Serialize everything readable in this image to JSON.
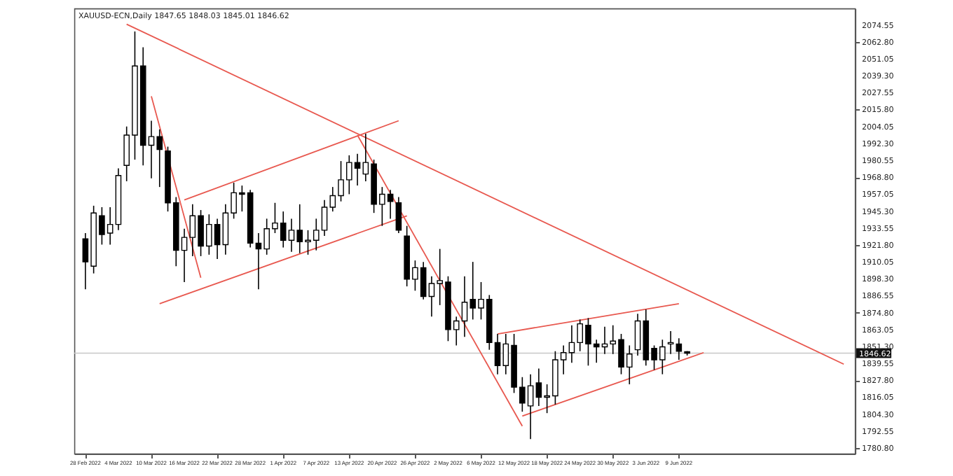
{
  "chart_data": {
    "type": "candlestick",
    "title": "XAUUSD-ECN,Daily  1847.65 1848.03 1845.01 1846.62",
    "categories": [
      "28 Feb 2022",
      null,
      null,
      null,
      "4 Mar 2022",
      null,
      null,
      null,
      "10 Mar 2022",
      null,
      null,
      null,
      "16 Mar 2022",
      null,
      null,
      null,
      "22 Mar 2022",
      null,
      null,
      null,
      "28 Mar 2022",
      null,
      null,
      null,
      "1 Apr 2022",
      null,
      null,
      null,
      "7 Apr 2022",
      null,
      null,
      null,
      "13 Apr 2022",
      null,
      null,
      null,
      "20 Apr 2022",
      null,
      null,
      null,
      "26 Apr 2022",
      null,
      null,
      null,
      "2 May 2022",
      null,
      null,
      null,
      "6 May 2022",
      null,
      null,
      null,
      "12 May 2022",
      null,
      null,
      null,
      "18 May 2022",
      null,
      null,
      null,
      "24 May 2022",
      null,
      null,
      null,
      "30 May 2022",
      null,
      null,
      null,
      "3 Jun 2022",
      null,
      null,
      null,
      "9 Jun 2022",
      null,
      null,
      null,
      null,
      null,
      null,
      null,
      null,
      null,
      null,
      null,
      null,
      null,
      null,
      null,
      null,
      null,
      null,
      null,
      null
    ],
    "ohlc": [
      [
        1926,
        1930,
        1891,
        1910
      ],
      [
        1907,
        1949,
        1902,
        1944
      ],
      [
        1942,
        1948,
        1922,
        1929
      ],
      [
        1930,
        1948,
        1922,
        1936
      ],
      [
        1936,
        1975,
        1932,
        1970
      ],
      [
        1977,
        2004,
        1966,
        1998
      ],
      [
        1998,
        2070,
        1981,
        2046
      ],
      [
        2046,
        2059,
        1977,
        1991
      ],
      [
        1991,
        2008,
        1968,
        1997
      ],
      [
        1997,
        2002,
        1962,
        1988
      ],
      [
        1987,
        1990,
        1945,
        1951
      ],
      [
        1951,
        1955,
        1907,
        1918
      ],
      [
        1918,
        1933,
        1896,
        1927
      ],
      [
        1927,
        1950,
        1914,
        1942
      ],
      [
        1942,
        1946,
        1914,
        1921
      ],
      [
        1921,
        1943,
        1915,
        1936
      ],
      [
        1936,
        1940,
        1912,
        1922
      ],
      [
        1922,
        1950,
        1915,
        1944
      ],
      [
        1944,
        1965,
        1940,
        1958
      ],
      [
        1958,
        1963,
        1945,
        1957
      ],
      [
        1958,
        1960,
        1920,
        1923
      ],
      [
        1923,
        1930,
        1891,
        1919
      ],
      [
        1919,
        1940,
        1915,
        1933
      ],
      [
        1933,
        1951,
        1930,
        1937
      ],
      [
        1937,
        1945,
        1920,
        1925
      ],
      [
        1925,
        1940,
        1917,
        1932
      ],
      [
        1932,
        1950,
        1916,
        1924
      ],
      [
        1924,
        1932,
        1915,
        1925
      ],
      [
        1925,
        1940,
        1918,
        1932
      ],
      [
        1932,
        1953,
        1928,
        1948
      ],
      [
        1948,
        1962,
        1945,
        1956
      ],
      [
        1956,
        1980,
        1952,
        1967
      ],
      [
        1967,
        1984,
        1957,
        1979
      ],
      [
        1979,
        1985,
        1963,
        1975
      ],
      [
        1971,
        1999,
        1966,
        1979
      ],
      [
        1978,
        1981,
        1944,
        1950
      ],
      [
        1950,
        1962,
        1935,
        1957
      ],
      [
        1957,
        1960,
        1940,
        1952
      ],
      [
        1951,
        1955,
        1930,
        1932
      ],
      [
        1928,
        1935,
        1893,
        1898
      ],
      [
        1898,
        1911,
        1890,
        1906
      ],
      [
        1906,
        1910,
        1884,
        1886
      ],
      [
        1886,
        1900,
        1872,
        1895
      ],
      [
        1895,
        1919,
        1880,
        1897
      ],
      [
        1896,
        1900,
        1855,
        1863
      ],
      [
        1863,
        1872,
        1852,
        1869
      ],
      [
        1869,
        1900,
        1858,
        1882
      ],
      [
        1884,
        1910,
        1870,
        1878
      ],
      [
        1878,
        1896,
        1870,
        1884
      ],
      [
        1884,
        1887,
        1849,
        1854
      ],
      [
        1854,
        1860,
        1832,
        1838
      ],
      [
        1838,
        1860,
        1832,
        1853
      ],
      [
        1852,
        1860,
        1819,
        1823
      ],
      [
        1823,
        1830,
        1806,
        1812
      ],
      [
        1810,
        1832,
        1787,
        1824
      ],
      [
        1826,
        1836,
        1810,
        1816
      ],
      [
        1816,
        1825,
        1805,
        1817
      ],
      [
        1817,
        1848,
        1811,
        1842
      ],
      [
        1842,
        1852,
        1832,
        1847
      ],
      [
        1847,
        1866,
        1840,
        1854
      ],
      [
        1854,
        1870,
        1848,
        1867
      ],
      [
        1866,
        1871,
        1838,
        1853
      ],
      [
        1853,
        1856,
        1840,
        1851
      ],
      [
        1851,
        1865,
        1846,
        1853
      ],
      [
        1853,
        1866,
        1846,
        1855
      ],
      [
        1856,
        1860,
        1832,
        1837
      ],
      [
        1837,
        1852,
        1825,
        1846
      ],
      [
        1849,
        1874,
        1845,
        1869
      ],
      [
        1869,
        1877,
        1838,
        1842
      ],
      [
        1850,
        1852,
        1835,
        1842
      ],
      [
        1842,
        1856,
        1832,
        1851
      ],
      [
        1853,
        1862,
        1846,
        1854
      ],
      [
        1853,
        1857,
        1842,
        1848
      ],
      [
        1847.65,
        1848.03,
        1845.01,
        1846.62
      ],
      null,
      null,
      null,
      null,
      null,
      null,
      null,
      null,
      null,
      null,
      null,
      null,
      null,
      null,
      null,
      null,
      null,
      null,
      null
    ],
    "series": [
      {
        "type": "line",
        "color": "#e8584f",
        "values": [
          null,
          null,
          null,
          null,
          null,
          2075,
          null,
          null,
          null,
          null,
          null,
          null,
          null,
          null,
          null,
          null,
          null,
          null,
          null,
          null,
          null,
          null,
          null,
          null,
          null,
          null,
          null,
          null,
          null,
          null,
          null,
          null,
          null,
          null,
          null,
          null,
          null,
          null,
          null,
          null,
          null,
          null,
          null,
          null,
          null,
          null,
          null,
          null,
          null,
          null,
          null,
          null,
          null,
          null,
          null,
          null,
          null,
          null,
          null,
          null,
          null,
          null,
          null,
          null,
          null,
          null,
          null,
          null,
          null,
          null,
          null,
          null,
          null,
          null,
          null,
          null,
          null,
          null,
          null,
          null,
          null,
          null,
          null,
          null,
          null,
          null,
          null,
          null,
          null,
          null,
          null,
          null,
          1839
        ]
      },
      {
        "type": "line",
        "color": "#e8584f",
        "values": [
          null,
          null,
          null,
          null,
          null,
          null,
          null,
          null,
          null,
          null,
          null,
          null,
          1953,
          null,
          null,
          null,
          null,
          null,
          null,
          null,
          null,
          null,
          null,
          null,
          null,
          null,
          null,
          null,
          null,
          null,
          null,
          null,
          null,
          null,
          null,
          null,
          null,
          null,
          2008,
          null,
          null,
          null,
          null,
          null,
          null,
          null,
          null,
          null,
          null,
          null,
          null,
          null,
          null,
          null,
          null,
          null,
          null,
          null,
          null,
          null,
          null,
          null,
          null,
          null,
          null,
          null,
          null,
          null,
          null,
          null,
          null,
          null,
          null,
          null,
          null,
          null,
          null,
          null,
          null,
          null,
          null,
          null,
          null,
          null,
          null,
          null,
          null,
          null,
          null,
          null,
          null,
          null,
          null
        ]
      },
      {
        "type": "line",
        "color": "#e8584f",
        "values": [
          null,
          null,
          null,
          null,
          null,
          null,
          null,
          null,
          null,
          1881,
          null,
          null,
          null,
          null,
          null,
          null,
          null,
          null,
          null,
          null,
          null,
          null,
          null,
          null,
          null,
          null,
          null,
          null,
          null,
          null,
          null,
          null,
          null,
          null,
          null,
          null,
          null,
          null,
          null,
          1942,
          null,
          null,
          null,
          null,
          null,
          null,
          null,
          null,
          null,
          null,
          null,
          null,
          null,
          null,
          null,
          null,
          null,
          null,
          null,
          null,
          null,
          null,
          null,
          null,
          null,
          null,
          null,
          null,
          null,
          null,
          null,
          null,
          null,
          null,
          null,
          null,
          null,
          null,
          null,
          null,
          null,
          null,
          null,
          null,
          null,
          null,
          null,
          null,
          null,
          null,
          null,
          null,
          null
        ]
      },
      {
        "type": "line",
        "color": "#e8584f",
        "values": [
          null,
          null,
          null,
          null,
          null,
          null,
          null,
          null,
          2025,
          null,
          null,
          null,
          null,
          null,
          1899,
          null,
          null,
          null,
          null,
          null,
          null,
          null,
          null,
          null,
          null,
          null,
          null,
          null,
          null,
          null,
          null,
          null,
          null,
          null,
          null,
          null,
          null,
          null,
          null,
          null,
          null,
          null,
          null,
          null,
          null,
          null,
          null,
          null,
          null,
          null,
          null,
          null,
          null,
          null,
          null,
          null,
          null,
          null,
          null,
          null,
          null,
          null,
          null,
          null,
          null,
          null,
          null,
          null,
          null,
          null,
          null,
          null,
          null,
          null,
          null,
          null,
          null,
          null,
          null,
          null,
          null,
          null,
          null,
          null,
          null,
          null,
          null,
          null,
          null,
          null,
          null,
          null,
          null
        ]
      },
      {
        "type": "line",
        "color": "#e8584f",
        "values": [
          null,
          null,
          null,
          null,
          null,
          null,
          null,
          null,
          null,
          null,
          null,
          null,
          null,
          null,
          null,
          null,
          null,
          null,
          null,
          null,
          null,
          null,
          null,
          null,
          null,
          null,
          null,
          null,
          null,
          null,
          null,
          null,
          null,
          1998,
          null,
          null,
          null,
          null,
          null,
          null,
          null,
          null,
          null,
          null,
          null,
          null,
          null,
          null,
          null,
          null,
          null,
          null,
          null,
          1796,
          null,
          null,
          null,
          null,
          null,
          null,
          null,
          null,
          null,
          null,
          null,
          null,
          null,
          null,
          null,
          null,
          null,
          null,
          null,
          null,
          null,
          null,
          null,
          null,
          null,
          null,
          null,
          null,
          null,
          null,
          null,
          null,
          null,
          null,
          null,
          null,
          null,
          null,
          null
        ]
      },
      {
        "type": "line",
        "color": "#e8584f",
        "values": [
          null,
          null,
          null,
          null,
          null,
          null,
          null,
          null,
          null,
          null,
          null,
          null,
          null,
          null,
          null,
          null,
          null,
          null,
          null,
          null,
          null,
          null,
          null,
          null,
          null,
          null,
          null,
          null,
          null,
          null,
          null,
          null,
          null,
          null,
          null,
          null,
          null,
          null,
          null,
          null,
          null,
          null,
          null,
          null,
          null,
          null,
          null,
          null,
          null,
          null,
          1860,
          null,
          null,
          null,
          null,
          null,
          null,
          null,
          null,
          null,
          null,
          null,
          null,
          null,
          null,
          null,
          null,
          null,
          null,
          null,
          null,
          null,
          1881,
          null,
          null,
          null,
          null,
          null,
          null,
          null,
          null,
          null,
          null,
          null,
          null,
          null,
          null,
          null,
          null,
          null,
          null,
          null,
          null
        ]
      },
      {
        "type": "line",
        "color": "#e8584f",
        "values": [
          null,
          null,
          null,
          null,
          null,
          null,
          null,
          null,
          null,
          null,
          null,
          null,
          null,
          null,
          null,
          null,
          null,
          null,
          null,
          null,
          null,
          null,
          null,
          null,
          null,
          null,
          null,
          null,
          null,
          null,
          null,
          null,
          null,
          null,
          null,
          null,
          null,
          null,
          null,
          null,
          null,
          null,
          null,
          null,
          null,
          null,
          null,
          null,
          null,
          null,
          null,
          null,
          null,
          1803,
          null,
          null,
          null,
          null,
          null,
          null,
          null,
          null,
          null,
          null,
          null,
          null,
          null,
          null,
          null,
          null,
          null,
          null,
          null,
          null,
          null,
          1847,
          null,
          null,
          null,
          null,
          null,
          null,
          null,
          null,
          null,
          null,
          null,
          null,
          null,
          null,
          null,
          null,
          null
        ]
      }
    ],
    "ylim": [
      1776.9,
      2086.0
    ],
    "yticks": [
      2074.55,
      {
        "value": 2062.8,
        "label": "2062.80"
      },
      2051.05,
      {
        "value": 2039.3,
        "label": "2039.30"
      },
      2027.55,
      {
        "value": 2015.8,
        "label": "2015.80"
      },
      2004.05,
      {
        "value": 1992.3,
        "label": "1992.30"
      },
      1980.55,
      {
        "value": 1968.8,
        "label": "1968.80"
      },
      1957.05,
      {
        "value": 1945.3,
        "label": "1945.30"
      },
      1933.55,
      {
        "value": 1921.8,
        "label": "1921.80"
      },
      1910.05,
      {
        "value": 1898.3,
        "label": "1898.30"
      },
      1886.55,
      {
        "value": 1874.8,
        "label": "1874.80"
      },
      1863.05,
      {
        "value": 1851.3,
        "label": "1851.30"
      },
      1839.55,
      {
        "value": 1827.8,
        "label": "1827.80"
      },
      1816.05,
      {
        "value": 1804.3,
        "label": "1804.30"
      },
      1792.55,
      {
        "value": 1780.8,
        "label": "1780.80"
      }
    ],
    "ref_lines": [
      {
        "axis": "y",
        "value": 1846.62,
        "label": "1846.62",
        "color": "#c8c8c8"
      }
    ],
    "grid": false,
    "legend": false
  }
}
